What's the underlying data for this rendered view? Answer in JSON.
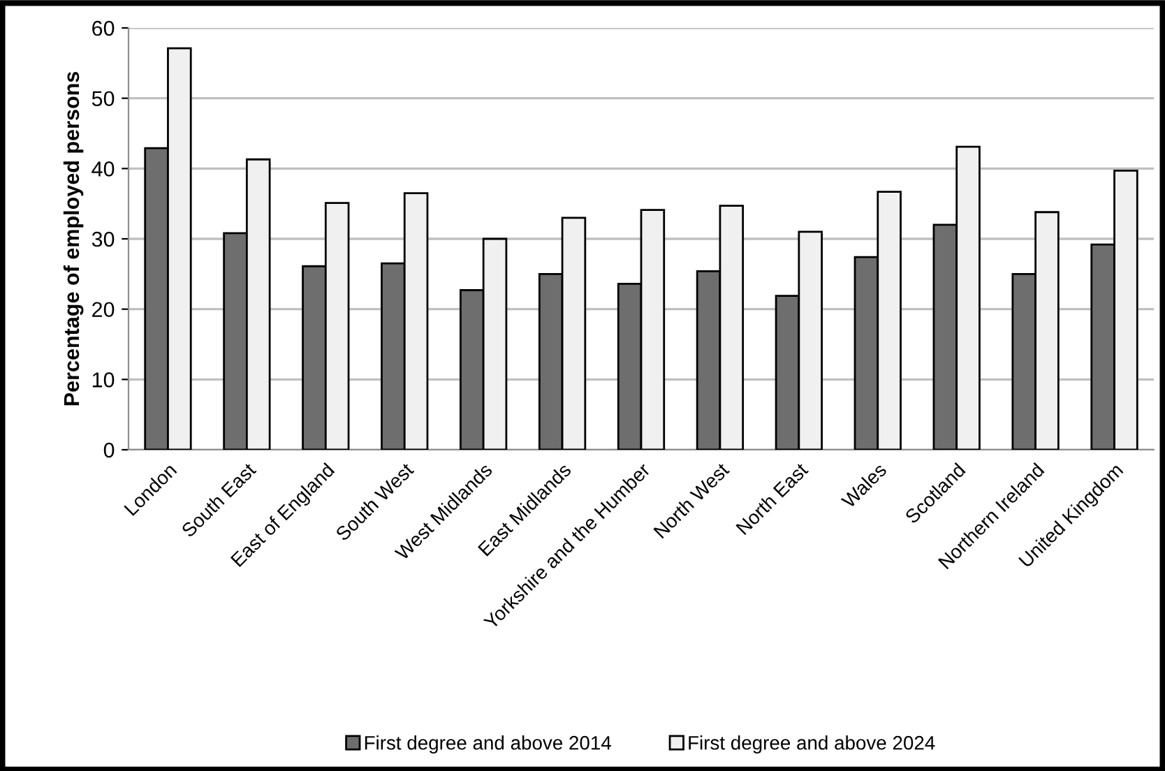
{
  "chart_data": {
    "type": "bar",
    "ylabel": "Percentage of employed persons",
    "categories": [
      "London",
      "South East",
      "East of England",
      "South West",
      "West Midlands",
      "East Midlands",
      "Yorkshire and the Humber",
      "North West",
      "North East",
      "Wales",
      "Scotland",
      "Northern Ireland",
      "United Kingdom"
    ],
    "series": [
      {
        "name": "First degree and above 2014",
        "color": "#6e6e6e",
        "values": [
          42.9,
          30.8,
          26.1,
          26.5,
          22.7,
          25.0,
          23.6,
          25.4,
          21.9,
          27.4,
          32.0,
          25.0,
          29.2
        ]
      },
      {
        "name": "First degree and above 2024",
        "color": "#f0f0f0",
        "values": [
          57.1,
          41.3,
          35.1,
          36.5,
          30.0,
          33.0,
          34.1,
          34.7,
          31.0,
          36.7,
          43.1,
          33.8,
          39.7
        ]
      }
    ],
    "ylim": [
      0,
      60
    ],
    "yticks": [
      0,
      10,
      20,
      30,
      40,
      50,
      60
    ],
    "grid": "y",
    "legend": "bottom"
  }
}
